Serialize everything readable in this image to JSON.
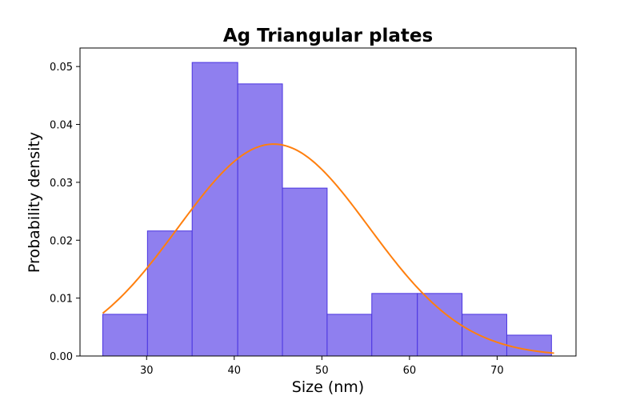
{
  "chart_data": {
    "type": "bar",
    "subtype": "histogram-with-normal-fit",
    "title": "Ag Triangular plates",
    "xlabel": "Size (nm)",
    "ylabel": "Probability density",
    "xlim": [
      22.4,
      79.0
    ],
    "ylim": [
      0,
      0.0532
    ],
    "xticks": [
      30,
      40,
      50,
      60,
      70
    ],
    "yticks": [
      0.0,
      0.01,
      0.02,
      0.03,
      0.04,
      0.05
    ],
    "ytick_labels": [
      "0.00",
      "0.01",
      "0.02",
      "0.03",
      "0.04",
      "0.05"
    ],
    "grid": false,
    "legend": "none",
    "bin_edges": [
      25.0,
      30.1,
      35.2,
      40.4,
      45.5,
      50.6,
      55.7,
      60.9,
      66.0,
      71.1,
      76.2
    ],
    "values": [
      0.0072,
      0.0216,
      0.0507,
      0.047,
      0.029,
      0.0072,
      0.0108,
      0.0108,
      0.0072,
      0.0036
    ],
    "fit_curve": {
      "kind": "normal",
      "mean": 44.5,
      "std": 10.9,
      "x_range": [
        25.0,
        76.5
      ]
    },
    "colors": {
      "bar_fill": "#8f7fef",
      "bar_edge": "#4a34e0",
      "curve": "#ff7f0e",
      "axes": "#000000"
    }
  }
}
